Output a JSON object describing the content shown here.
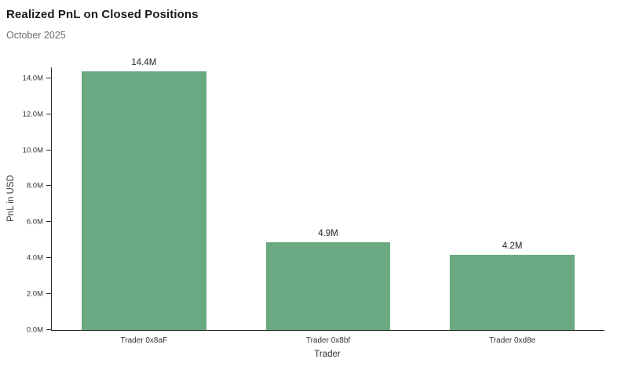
{
  "chart_data": {
    "type": "bar",
    "title": "Realized PnL on Closed Positions",
    "subtitle": "October 2025",
    "xlabel": "Trader",
    "ylabel": "PnL in USD",
    "categories": [
      "Trader 0x8aF",
      "Trader 0x8bf",
      "Trader 0xd8e"
    ],
    "values": [
      14.4,
      4.9,
      4.2
    ],
    "value_labels": [
      "14.4M",
      "4.9M",
      "4.2M"
    ],
    "unit": "M USD",
    "bar_color": "#6aa981",
    "ylim": [
      0,
      14.6
    ],
    "yticks": [
      0,
      2,
      4,
      6,
      8,
      10,
      12,
      14
    ],
    "ytick_labels": [
      "0.0M",
      "2.0M",
      "4.0M",
      "6.0M",
      "8.0M",
      "10.0M",
      "12.0M",
      "14.0M"
    ],
    "grid": false,
    "legend": false
  }
}
